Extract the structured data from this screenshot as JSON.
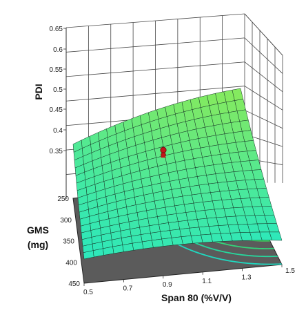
{
  "chart_data": {
    "type": "surface",
    "zlabel": "PDI",
    "xlabel": "Span 80 (%V/V)",
    "ylabel_line1": "GMS",
    "ylabel_line2": "(mg)",
    "z_ticks": [
      "0.35",
      "0.4",
      "0.45",
      "0.5",
      "0.55",
      "0.6",
      "0.65"
    ],
    "x_ticks": [
      "0.5",
      "0.7",
      "0.9",
      "1.1",
      "1.3",
      "1.5"
    ],
    "y_ticks": [
      "250",
      "300",
      "350",
      "400",
      "450"
    ],
    "xlim": [
      0.5,
      1.5
    ],
    "ylim": [
      250,
      450
    ],
    "zlim": [
      0.3,
      0.65
    ],
    "surface_corners_pdi": {
      "span_0.5_gms_250": 0.41,
      "span_1.5_gms_250": 0.49,
      "span_0.5_gms_450": 0.355,
      "span_1.5_gms_450": 0.36
    },
    "design_point": {
      "span80": 1.0,
      "gms": 300,
      "pdi": 0.4
    },
    "floor_contours": {
      "levels": 9
    },
    "colors": {
      "floor": "#5b5b5b",
      "surface_low": "#20e8c8",
      "surface_high": "#9aea48",
      "mesh": "#153326",
      "marker": "#c0171b"
    }
  }
}
